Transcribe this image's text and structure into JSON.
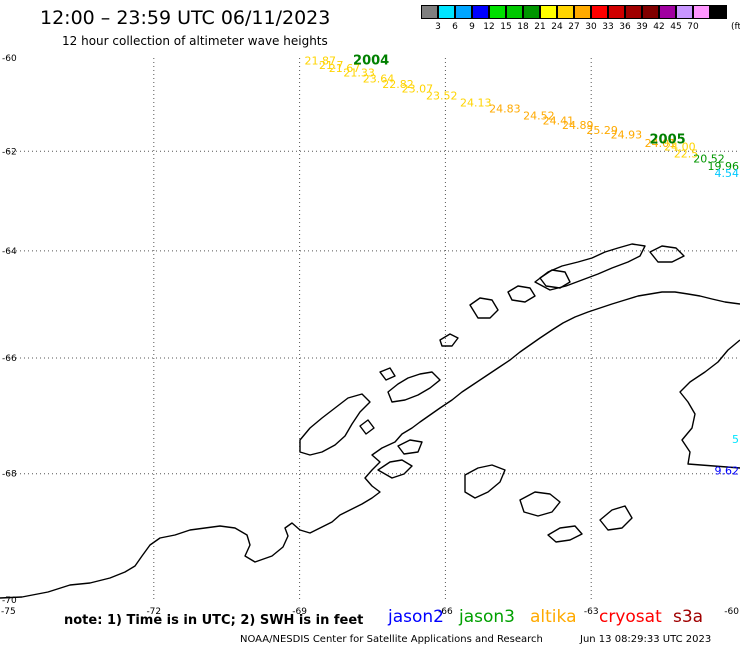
{
  "header": {
    "title": "12:00 – 23:59 UTC 06/11/2023",
    "subtitle": "12 hour collection of altimeter wave heights"
  },
  "legend": {
    "colors": [
      "#7f7f7f",
      "#00e5ff",
      "#00a6ff",
      "#0000ff",
      "#00e000",
      "#00c800",
      "#009600",
      "#ffff00",
      "#ffd400",
      "#ffaa00",
      "#ff0000",
      "#d00000",
      "#a00000",
      "#800000",
      "#a000a0",
      "#c896ff",
      "#ff96ff",
      "#000000"
    ],
    "labels": [
      "3",
      "6",
      "9",
      "12",
      "15",
      "18",
      "21",
      "24",
      "27",
      "30",
      "33",
      "36",
      "39",
      "42",
      "45",
      "70"
    ],
    "unit": "(ft)"
  },
  "map": {
    "lon_ticks": [
      {
        "lon": -75,
        "label": "-75"
      },
      {
        "lon": -72,
        "label": "-72"
      },
      {
        "lon": -69,
        "label": "-69"
      },
      {
        "lon": -66,
        "label": "-66"
      },
      {
        "lon": -63,
        "label": "-63"
      },
      {
        "lon": -60,
        "label": "-60"
      }
    ],
    "lat_ticks": [
      {
        "lat": -60,
        "label": "-60"
      },
      {
        "lat": -62,
        "label": "-62"
      },
      {
        "lat": -64,
        "label": "-64"
      },
      {
        "lat": -66,
        "label": "-66"
      },
      {
        "lat": -68,
        "label": "-68"
      },
      {
        "lat": -70,
        "label": "-70"
      }
    ],
    "track_times": [
      {
        "label": "2004",
        "lon": -67.9,
        "lat": -60.05,
        "color": "#008000"
      },
      {
        "label": "2005",
        "lon": -61.8,
        "lat": -61.75,
        "color": "#008000"
      }
    ],
    "swh_readings": [
      {
        "value": "21.87",
        "lon": -68.9,
        "lat": -60.05,
        "color": "#ffd400"
      },
      {
        "value": "21.7",
        "lon": -68.6,
        "lat": -60.15,
        "color": "#ffd400"
      },
      {
        "value": "21.67",
        "lon": -68.4,
        "lat": -60.22,
        "color": "#ffd400"
      },
      {
        "value": "21.33",
        "lon": -68.1,
        "lat": -60.32,
        "color": "#ffd400"
      },
      {
        "value": "23.64",
        "lon": -67.7,
        "lat": -60.45,
        "color": "#ffd400"
      },
      {
        "value": "22.82",
        "lon": -67.3,
        "lat": -60.57,
        "color": "#ffd400"
      },
      {
        "value": "23.07",
        "lon": -66.9,
        "lat": -60.67,
        "color": "#ffd400"
      },
      {
        "value": "23.52",
        "lon": -66.4,
        "lat": -60.82,
        "color": "#ffd400"
      },
      {
        "value": "24.13",
        "lon": -65.7,
        "lat": -60.97,
        "color": "#ffd400"
      },
      {
        "value": "24.83",
        "lon": -65.1,
        "lat": -61.1,
        "color": "#ffaa00"
      },
      {
        "value": "24.52",
        "lon": -64.4,
        "lat": -61.25,
        "color": "#ffaa00"
      },
      {
        "value": "24.41",
        "lon": -64.0,
        "lat": -61.35,
        "color": "#ffaa00"
      },
      {
        "value": "24.89",
        "lon": -63.6,
        "lat": -61.45,
        "color": "#ffaa00"
      },
      {
        "value": "25.29",
        "lon": -63.1,
        "lat": -61.55,
        "color": "#ffaa00"
      },
      {
        "value": "24.93",
        "lon": -62.6,
        "lat": -61.65,
        "color": "#ffaa00"
      },
      {
        "value": "24.01",
        "lon": -61.9,
        "lat": -61.83,
        "color": "#ffaa00"
      },
      {
        "value": "24.00",
        "lon": -61.5,
        "lat": -61.9,
        "color": "#ffd400"
      },
      {
        "value": "22.5",
        "lon": -61.3,
        "lat": -62.05,
        "color": "#ffd400"
      },
      {
        "value": "20.52",
        "lon": -60.9,
        "lat": -62.15,
        "color": "#009600"
      },
      {
        "value": "19.96",
        "lon": -60.5,
        "lat": -62.3,
        "color": "#009600"
      },
      {
        "value": "4.54",
        "lon": -60.15,
        "lat": -62.45,
        "color": "#00c8ff"
      },
      {
        "value": "9.62",
        "lon": -60.25,
        "lat": -67.95,
        "color": "#0000ff"
      },
      {
        "value": "5",
        "lon": -60.05,
        "lat": -67.42,
        "color": "#00e5ff"
      }
    ]
  },
  "footer": {
    "note": "note: 1) Time is in UTC; 2) SWH is in feet",
    "satellites": [
      {
        "name": "jason2",
        "color": "#0000ff"
      },
      {
        "name": "jason3",
        "color": "#00a000"
      },
      {
        "name": "altika",
        "color": "#ffaa00"
      },
      {
        "name": "cryosat",
        "color": "#ff0000"
      },
      {
        "name": "s3a",
        "color": "#a00000"
      }
    ],
    "credit": "NOAA/NESDIS Center for Satellite Applications and Research",
    "timestamp": "Jun 13 08:29:33 UTC 2023"
  }
}
